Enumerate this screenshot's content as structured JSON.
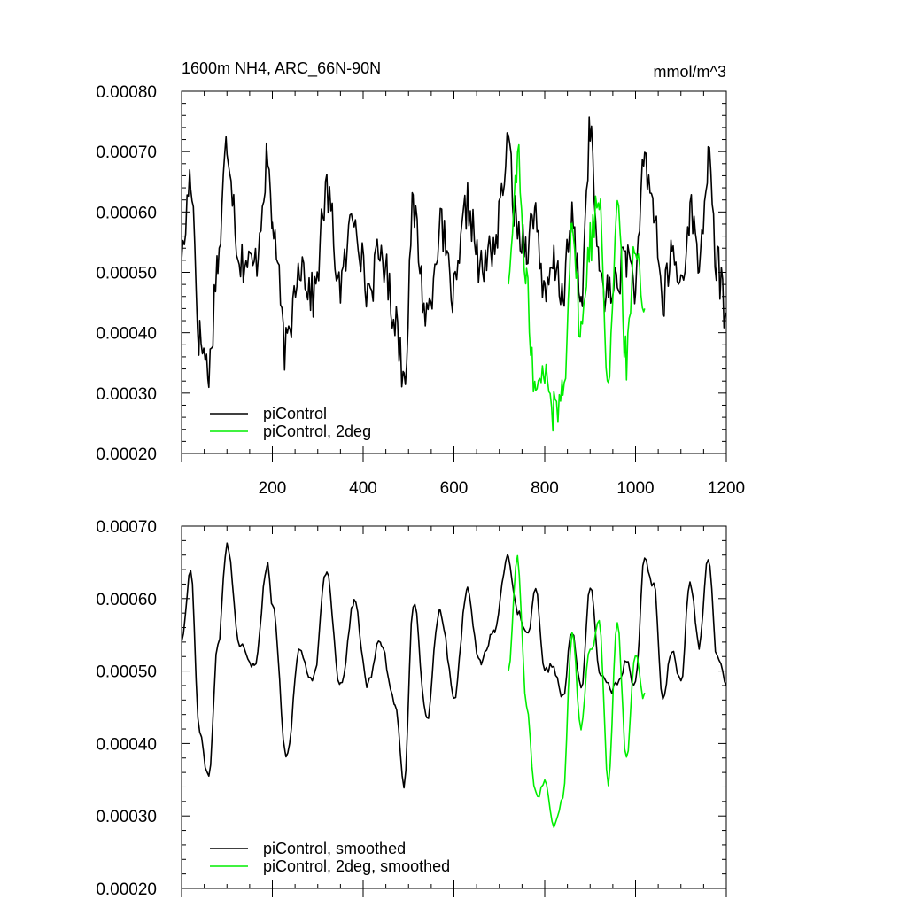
{
  "colors": {
    "control": "#000000",
    "twodeg": "#00ee00",
    "axis": "#000000"
  },
  "chart_data": [
    {
      "type": "line",
      "title": "1600m NH4, ARC_66N-90N",
      "units": "mmol/m^3",
      "xlim": [
        0,
        1200
      ],
      "ylim": [
        0.0002,
        0.0008
      ],
      "xticks": [
        200,
        400,
        600,
        800,
        1000,
        1200
      ],
      "xtick_labels": [
        "200",
        "400",
        "600",
        "800",
        "1000",
        "1200"
      ],
      "yticks": [
        0.0002,
        0.0003,
        0.0004,
        0.0005,
        0.0006,
        0.0007,
        0.0008
      ],
      "ytick_labels": [
        "0.00020",
        "0.00030",
        "0.00040",
        "0.00050",
        "0.00060",
        "0.00070",
        "0.00080"
      ],
      "legend": {
        "placement": "bottom-left"
      },
      "series": [
        {
          "name": "piControl",
          "color": "#000000",
          "x": [
            0,
            20,
            40,
            60,
            80,
            100,
            130,
            160,
            190,
            200,
            230,
            260,
            290,
            320,
            350,
            380,
            410,
            440,
            470,
            490,
            510,
            540,
            570,
            600,
            630,
            660,
            690,
            720,
            740,
            760,
            780,
            800,
            820,
            840,
            860,
            880,
            900,
            920,
            940,
            960,
            980,
            1000,
            1020,
            1040,
            1060,
            1080,
            1100,
            1120,
            1140,
            1160,
            1180,
            1200
          ],
          "y": [
            0.00052,
            0.00066,
            0.00039,
            0.00034,
            0.00052,
            0.00071,
            0.00052,
            0.00051,
            0.00068,
            0.00058,
            0.00037,
            0.00052,
            0.00046,
            0.00063,
            0.00048,
            0.0006,
            0.00047,
            0.00053,
            0.00043,
            0.00033,
            0.0006,
            0.00043,
            0.00057,
            0.00046,
            0.00061,
            0.0005,
            0.00055,
            0.0007,
            0.00057,
            0.00055,
            0.0006,
            0.00045,
            0.00051,
            0.00047,
            0.00058,
            0.00046,
            0.00073,
            0.0005,
            0.00046,
            0.00049,
            0.00053,
            0.00048,
            0.00068,
            0.00061,
            0.00045,
            0.00053,
            0.00048,
            0.0006,
            0.00052,
            0.00068,
            0.00051,
            0.00043
          ]
        },
        {
          "name": "piControl, 2deg",
          "color": "#00ee00",
          "x": [
            720,
            740,
            760,
            780,
            800,
            820,
            840,
            860,
            880,
            900,
            920,
            940,
            960,
            980,
            1000,
            1020
          ],
          "y": [
            0.00048,
            0.00069,
            0.00047,
            0.0003,
            0.00033,
            0.00027,
            0.0003,
            0.00058,
            0.0004,
            0.00055,
            0.00063,
            0.00033,
            0.0006,
            0.00036,
            0.00055,
            0.00044
          ]
        }
      ]
    },
    {
      "type": "line",
      "xlim": [
        0,
        1200
      ],
      "ylim": [
        0.0002,
        0.0007
      ],
      "yticks": [
        0.0002,
        0.0003,
        0.0004,
        0.0005,
        0.0006,
        0.0007
      ],
      "ytick_labels": [
        "0.00020",
        "0.00030",
        "0.00040",
        "0.00050",
        "0.00060",
        "0.00070"
      ],
      "legend": {
        "placement": "bottom-left"
      },
      "series": [
        {
          "name": "piControl, smoothed",
          "color": "#000000",
          "x": [
            0,
            20,
            40,
            60,
            80,
            100,
            130,
            160,
            190,
            200,
            230,
            260,
            290,
            320,
            350,
            380,
            410,
            440,
            470,
            490,
            510,
            540,
            570,
            600,
            630,
            660,
            690,
            720,
            740,
            760,
            780,
            800,
            820,
            840,
            860,
            880,
            900,
            920,
            940,
            960,
            980,
            1000,
            1020,
            1040,
            1060,
            1080,
            1100,
            1120,
            1140,
            1160,
            1180,
            1200
          ],
          "y": [
            0.00054,
            0.00064,
            0.00042,
            0.00036,
            0.00054,
            0.00068,
            0.00053,
            0.00052,
            0.00066,
            0.00059,
            0.00039,
            0.00053,
            0.00048,
            0.00063,
            0.00049,
            0.0006,
            0.00048,
            0.00054,
            0.00045,
            0.00034,
            0.00061,
            0.00044,
            0.00058,
            0.00047,
            0.00062,
            0.00051,
            0.00056,
            0.00067,
            0.00058,
            0.00054,
            0.0006,
            0.00048,
            0.0005,
            0.00046,
            0.00055,
            0.00047,
            0.00062,
            0.0005,
            0.00047,
            0.00048,
            0.00052,
            0.00049,
            0.00066,
            0.00062,
            0.00045,
            0.00052,
            0.00049,
            0.00062,
            0.00053,
            0.00066,
            0.00052,
            0.00048
          ]
        },
        {
          "name": "piControl, 2deg, smoothed",
          "color": "#00ee00",
          "x": [
            720,
            740,
            760,
            780,
            800,
            820,
            840,
            860,
            880,
            900,
            920,
            940,
            960,
            980,
            1000,
            1020
          ],
          "y": [
            0.0005,
            0.00066,
            0.00045,
            0.00032,
            0.00035,
            0.00028,
            0.00032,
            0.00055,
            0.00042,
            0.00054,
            0.00058,
            0.00035,
            0.00057,
            0.00038,
            0.00053,
            0.00047
          ]
        }
      ]
    }
  ]
}
